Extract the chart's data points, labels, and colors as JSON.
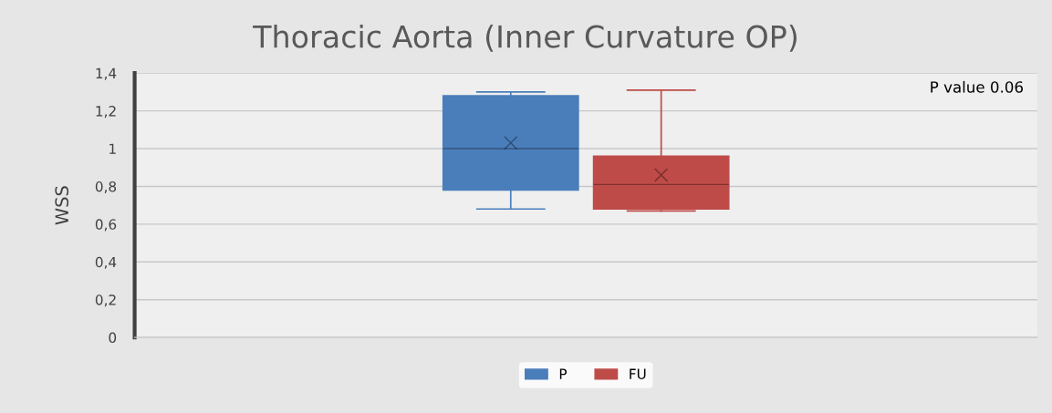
{
  "chart_data": {
    "type": "box",
    "title": "Thoracic Aorta (Inner Curvature OP)",
    "ylabel": "WSS",
    "categories": [
      null
    ],
    "series": [
      {
        "name": "P",
        "color": "#4a7ebb",
        "boxes": [
          {
            "low": 0.68,
            "q1": 0.78,
            "median": 1.0,
            "q3": 1.28,
            "high": 1.3,
            "mean": 1.03
          }
        ]
      },
      {
        "name": "FU",
        "color": "#be4b48",
        "boxes": [
          {
            "low": 0.67,
            "q1": 0.68,
            "median": 0.81,
            "q3": 0.96,
            "high": 1.31,
            "mean": 0.86
          }
        ]
      }
    ],
    "ylim": [
      0,
      1.4
    ],
    "yticks": [
      0,
      {
        "value": 0.2,
        "label": "0,2"
      },
      {
        "value": 0.4,
        "label": "0,4"
      },
      {
        "value": 0.6,
        "label": "0,6"
      },
      {
        "value": 0.8,
        "label": "0,8"
      },
      1,
      {
        "value": 1.2,
        "label": "1,2"
      },
      {
        "value": 1.4,
        "label": "1,4"
      }
    ],
    "grid": "y",
    "legend": "bottom",
    "marker": "cross",
    "annotations": [
      "P value 0.06"
    ]
  }
}
